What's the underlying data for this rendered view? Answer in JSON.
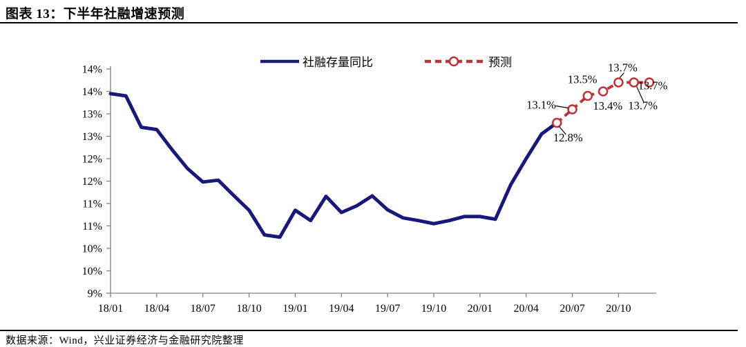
{
  "header": {
    "title": "图表 13：下半年社融增速预测"
  },
  "footer": {
    "source": "数据来源：Wind，兴业证券经济与金融研究院整理"
  },
  "chart_data": {
    "type": "line",
    "title": "下半年社融增速预测",
    "legend_position": "top",
    "grid": false,
    "y_axis": {
      "min": 9,
      "max": 14,
      "step": 0.5,
      "unit": "%",
      "tick_labels_top_to_bottom": [
        "14%",
        "14%",
        "13%",
        "13%",
        "12%",
        "12%",
        "11%",
        "11%",
        "10%",
        "10%",
        "9%"
      ]
    },
    "x_axis": {
      "tick_labels": [
        "18/01",
        "18/04",
        "18/07",
        "18/10",
        "19/01",
        "19/04",
        "19/07",
        "19/10",
        "20/01",
        "20/04",
        "20/07",
        "20/10"
      ],
      "months": [
        "18/01",
        "18/02",
        "18/03",
        "18/04",
        "18/05",
        "18/06",
        "18/07",
        "18/08",
        "18/09",
        "18/10",
        "18/11",
        "18/12",
        "19/01",
        "19/02",
        "19/03",
        "19/04",
        "19/05",
        "19/06",
        "19/07",
        "19/08",
        "19/09",
        "19/10",
        "19/11",
        "19/12",
        "20/01",
        "20/02",
        "20/03",
        "20/04",
        "20/05",
        "20/06",
        "20/07",
        "20/08",
        "20/09",
        "20/10",
        "20/11",
        "20/12"
      ]
    },
    "series": [
      {
        "name": "社融存量同比",
        "style": "solid",
        "color": "#18187A",
        "x": [
          "18/01",
          "18/02",
          "18/03",
          "18/04",
          "18/05",
          "18/06",
          "18/07",
          "18/08",
          "18/09",
          "18/10",
          "18/11",
          "18/12",
          "19/01",
          "19/02",
          "19/03",
          "19/04",
          "19/05",
          "19/06",
          "19/07",
          "19/08",
          "19/09",
          "19/10",
          "19/11",
          "19/12",
          "20/01",
          "20/02",
          "20/03",
          "20/04",
          "20/05",
          "20/06"
        ],
        "values": [
          13.45,
          13.4,
          12.7,
          12.65,
          12.2,
          11.78,
          11.48,
          11.52,
          11.18,
          10.85,
          10.3,
          10.25,
          10.85,
          10.62,
          11.16,
          10.8,
          10.95,
          11.17,
          10.86,
          10.68,
          10.62,
          10.55,
          10.62,
          10.71,
          10.71,
          10.65,
          11.42,
          12.0,
          12.55,
          12.8
        ]
      },
      {
        "name": "预测",
        "style": "dashed-open-circle",
        "color": "#C33039",
        "x": [
          "20/06",
          "20/07",
          "20/08",
          "20/09",
          "20/10",
          "20/11",
          "20/12"
        ],
        "values": [
          12.8,
          13.1,
          13.4,
          13.5,
          13.7,
          13.7,
          13.7
        ],
        "data_labels": [
          "12.8%",
          "13.1%",
          "13.4%",
          "13.5%",
          "13.7%",
          "13.7%",
          "13.7%"
        ]
      }
    ],
    "legend": [
      {
        "label": "社融存量同比",
        "color": "#18187A",
        "style": "solid"
      },
      {
        "label": "预测",
        "color": "#C33039",
        "style": "dashed-open-circle"
      }
    ]
  }
}
